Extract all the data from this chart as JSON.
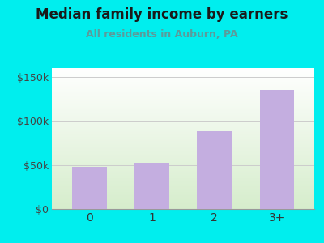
{
  "categories": [
    "0",
    "1",
    "2",
    "3+"
  ],
  "values": [
    48000,
    52000,
    88000,
    135000
  ],
  "bar_color": "#C4AEE0",
  "title": "Median family income by earners",
  "subtitle": "All residents in Auburn, PA",
  "subtitle_color": "#5B9B9B",
  "title_color": "#1a1a1a",
  "background_color": "#00EEEE",
  "ylim": [
    0,
    160000
  ],
  "yticks": [
    0,
    50000,
    100000,
    150000
  ],
  "ytick_labels": [
    "$0",
    "$50k",
    "$100k",
    "$150k"
  ],
  "figsize": [
    4.0,
    3.0
  ],
  "dpi": 100
}
